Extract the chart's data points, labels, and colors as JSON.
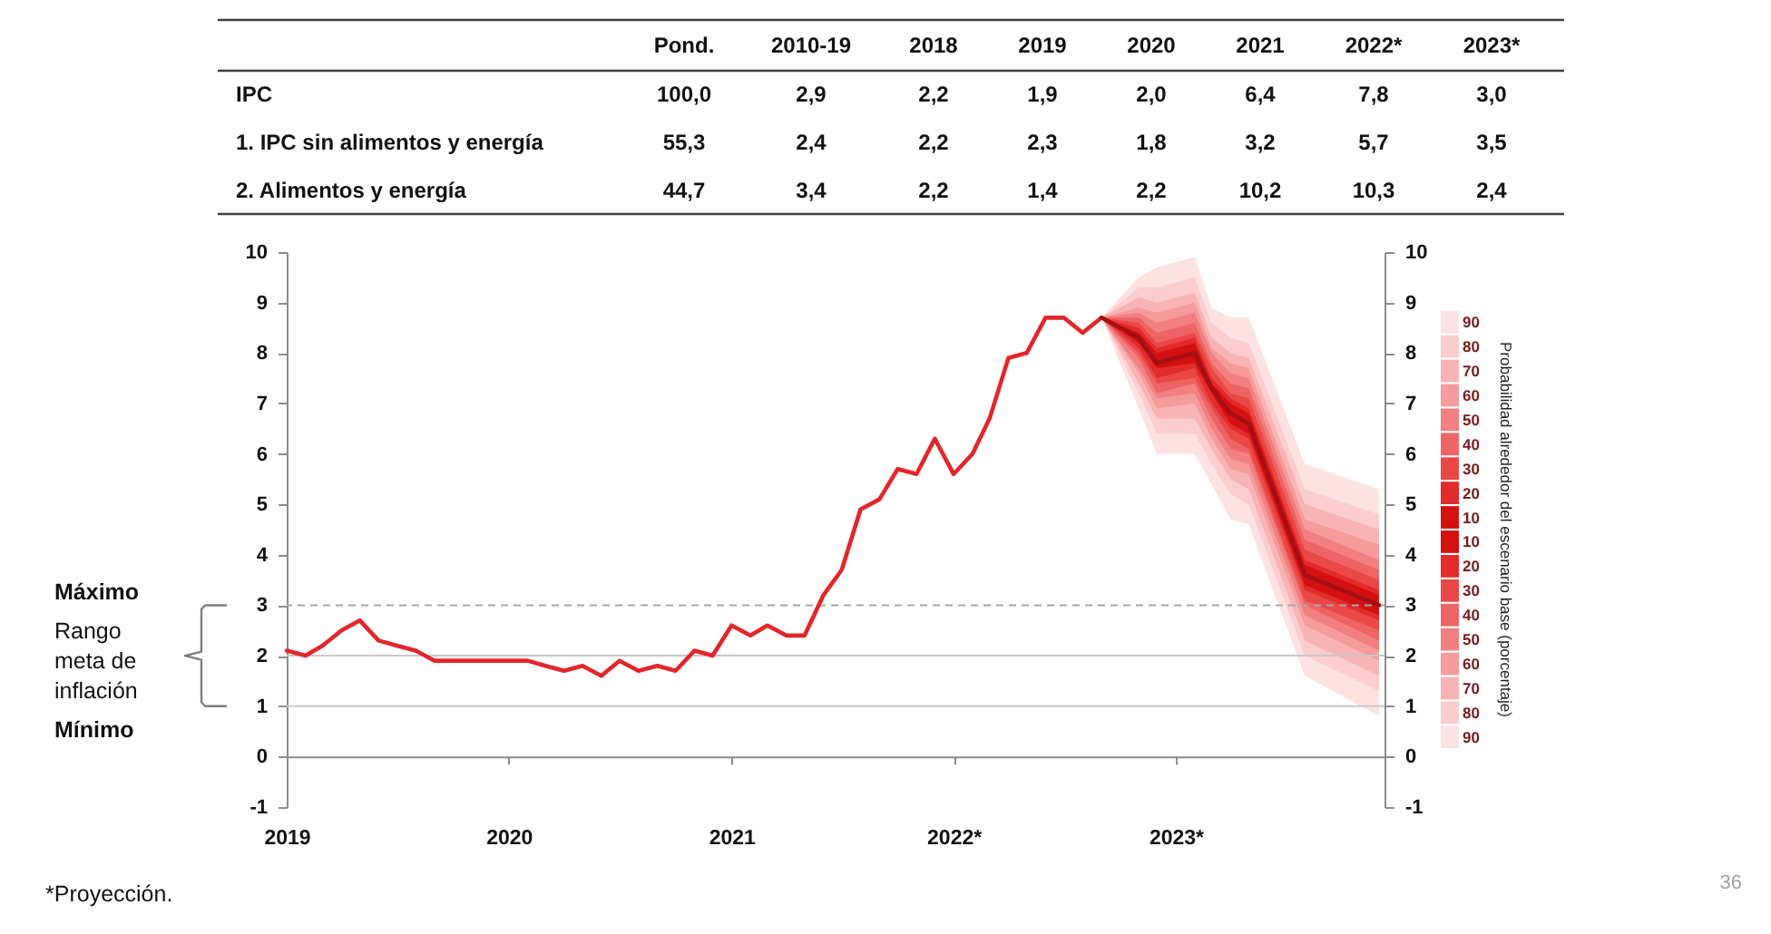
{
  "chart_data": [
    {
      "type": "heatmap",
      "categories": [
        "Pond.",
        "2010-19",
        "2018",
        "2019",
        "2020",
        "2021",
        "2022*",
        "2023*"
      ],
      "y_categories": [
        "IPC",
        "1. IPC sin alimentos y energía",
        "2. Alimentos y energía"
      ],
      "cells": [
        [
          100.0,
          2.9,
          2.2,
          1.9,
          2.0,
          6.4,
          7.8,
          3.0
        ],
        [
          55.3,
          2.4,
          2.2,
          2.3,
          1.8,
          3.2,
          5.7,
          3.5
        ],
        [
          44.7,
          3.4,
          2.2,
          1.4,
          2.2,
          10.2,
          10.3,
          2.4
        ]
      ],
      "cell_labels": [
        [
          "100,0",
          "2,9",
          "2,2",
          "1,9",
          "2,0",
          "6,4",
          "7,8",
          "3,0"
        ],
        [
          "55,3",
          "2,4",
          "2,2",
          "2,3",
          "1,8",
          "3,2",
          "5,7",
          "3,5"
        ],
        [
          "44,7",
          "3,4",
          "2,2",
          "1,4",
          "2,2",
          "10,2",
          "10,3",
          "2,4"
        ]
      ]
    },
    {
      "type": "line",
      "xlim": [
        "2019-01",
        "2023-12-10"
      ],
      "xticks": [
        "2019",
        "2020",
        "2021",
        {
          "value": "2022",
          "label": "2022*"
        },
        {
          "value": "2023",
          "label": "2023*"
        }
      ],
      "ylim": [
        -1,
        10
      ],
      "yticks": [
        -1,
        0,
        1,
        2,
        3,
        4,
        5,
        6,
        7,
        8,
        9,
        10
      ],
      "y2lim": [
        -1,
        10
      ],
      "y2ticks": [
        -1,
        0,
        1,
        2,
        3,
        4,
        5,
        6,
        7,
        8,
        9,
        10
      ],
      "legend": "right",
      "legend_title": "Probabilidad alrededor del escenario base (porcentaje)",
      "ref_lines": [
        {
          "axis": "y",
          "value": 3,
          "color": "#a6a6a6",
          "line_style": "dashed"
        },
        {
          "axis": "y",
          "value": 2,
          "color": "#c8c8c8"
        },
        {
          "axis": "y",
          "value": 1,
          "color": "#c8c8c8"
        }
      ],
      "annotations": [
        "Máximo",
        "Rango meta de inflación",
        "Mínimo",
        "*Proyección.",
        "36"
      ],
      "series": [
        {
          "type": "area",
          "name": "90",
          "color": "#fde2e2",
          "x": [
            "2022-09",
            "2022-11",
            "2022-12",
            "2023-02",
            "2023-03",
            "2023-04",
            "2023-05",
            "2023-08",
            "2023-12"
          ],
          "values": [
            null,
            null,
            null,
            null,
            null,
            null,
            null,
            null,
            null
          ],
          "upper": [
            8.7,
            9.5,
            9.7,
            9.9,
            8.9,
            8.7,
            8.7,
            5.8,
            5.3
          ],
          "lower": [
            8.7,
            6.9,
            6.0,
            6.0,
            5.4,
            4.7,
            4.6,
            1.6,
            0.8
          ]
        },
        {
          "type": "area",
          "name": "80",
          "color": "#fbcdcd",
          "x": [
            "2022-09",
            "2022-11",
            "2022-12",
            "2023-02",
            "2023-03",
            "2023-04",
            "2023-05",
            "2023-08",
            "2023-12"
          ],
          "values": [
            null,
            null,
            null,
            null,
            null,
            null,
            null,
            null,
            null
          ],
          "upper": [
            8.7,
            9.3,
            9.3,
            9.5,
            8.6,
            8.3,
            8.2,
            5.3,
            4.8
          ],
          "lower": [
            8.7,
            7.2,
            6.4,
            6.4,
            5.8,
            5.2,
            5.0,
            2.0,
            1.3
          ]
        },
        {
          "type": "area",
          "name": "70",
          "color": "#f8b4b4",
          "x": [
            "2022-09",
            "2022-11",
            "2022-12",
            "2023-02",
            "2023-03",
            "2023-04",
            "2023-05",
            "2023-08",
            "2023-12"
          ],
          "values": [
            null,
            null,
            null,
            null,
            null,
            null,
            null,
            null,
            null
          ],
          "upper": [
            8.7,
            9.1,
            9.0,
            9.2,
            8.3,
            8.0,
            7.9,
            5.0,
            4.5
          ],
          "lower": [
            8.7,
            7.4,
            6.7,
            6.7,
            6.1,
            5.5,
            5.3,
            2.3,
            1.6
          ]
        },
        {
          "type": "area",
          "name": "60",
          "color": "#f59b9b",
          "x": [
            "2022-09",
            "2022-11",
            "2022-12",
            "2023-02",
            "2023-03",
            "2023-04",
            "2023-05",
            "2023-08",
            "2023-12"
          ],
          "values": [
            null,
            null,
            null,
            null,
            null,
            null,
            null,
            null,
            null
          ],
          "upper": [
            8.7,
            8.9,
            8.8,
            9.0,
            8.1,
            7.8,
            7.7,
            4.7,
            4.2
          ],
          "lower": [
            8.7,
            7.6,
            6.9,
            7.0,
            6.3,
            5.7,
            5.6,
            2.6,
            1.9
          ]
        },
        {
          "type": "area",
          "name": "50",
          "color": "#f28080",
          "x": [
            "2022-09",
            "2022-11",
            "2022-12",
            "2023-02",
            "2023-03",
            "2023-04",
            "2023-05",
            "2023-08",
            "2023-12"
          ],
          "values": [
            null,
            null,
            null,
            null,
            null,
            null,
            null,
            null,
            null
          ],
          "upper": [
            8.7,
            8.8,
            8.6,
            8.8,
            8.0,
            7.6,
            7.5,
            4.5,
            3.9
          ],
          "lower": [
            8.7,
            7.7,
            7.1,
            7.2,
            6.5,
            5.9,
            5.8,
            2.8,
            2.1
          ]
        },
        {
          "type": "area",
          "name": "40",
          "color": "#ee6464",
          "x": [
            "2022-09",
            "2022-11",
            "2022-12",
            "2023-02",
            "2023-03",
            "2023-04",
            "2023-05",
            "2023-08",
            "2023-12"
          ],
          "values": [
            null,
            null,
            null,
            null,
            null,
            null,
            null,
            null,
            null
          ],
          "upper": [
            8.7,
            8.7,
            8.4,
            8.6,
            7.8,
            7.4,
            7.3,
            4.3,
            3.7
          ],
          "lower": [
            8.7,
            7.9,
            7.2,
            7.4,
            6.7,
            6.1,
            6.0,
            3.0,
            2.3
          ]
        },
        {
          "type": "area",
          "name": "30",
          "color": "#ea4747",
          "x": [
            "2022-09",
            "2022-11",
            "2022-12",
            "2023-02",
            "2023-03",
            "2023-04",
            "2023-05",
            "2023-08",
            "2023-12"
          ],
          "values": [
            null,
            null,
            null,
            null,
            null,
            null,
            null,
            null,
            null
          ],
          "upper": [
            8.7,
            8.6,
            8.2,
            8.4,
            7.7,
            7.2,
            7.1,
            4.1,
            3.5
          ],
          "lower": [
            8.7,
            8.0,
            7.4,
            7.5,
            6.9,
            6.3,
            6.1,
            3.1,
            2.5
          ]
        },
        {
          "type": "area",
          "name": "20",
          "color": "#e32b2b",
          "x": [
            "2022-09",
            "2022-11",
            "2022-12",
            "2023-02",
            "2023-03",
            "2023-04",
            "2023-05",
            "2023-08",
            "2023-12"
          ],
          "values": [
            null,
            null,
            null,
            null,
            null,
            null,
            null,
            null,
            null
          ],
          "upper": [
            8.7,
            8.5,
            8.1,
            8.3,
            7.5,
            7.1,
            6.9,
            3.9,
            3.3
          ],
          "lower": [
            8.7,
            8.1,
            7.5,
            7.7,
            7.0,
            6.5,
            6.3,
            3.3,
            2.7
          ]
        },
        {
          "type": "area",
          "name": "10",
          "color": "#d41010",
          "x": [
            "2022-09",
            "2022-11",
            "2022-12",
            "2023-02",
            "2023-03",
            "2023-04",
            "2023-05",
            "2023-08",
            "2023-12"
          ],
          "values": [
            null,
            null,
            null,
            null,
            null,
            null,
            null,
            null,
            null
          ],
          "upper": [
            8.7,
            8.4,
            8.0,
            8.2,
            7.4,
            7.0,
            6.8,
            3.8,
            3.2
          ],
          "lower": [
            8.7,
            8.2,
            7.7,
            7.8,
            7.2,
            6.6,
            6.4,
            3.4,
            2.8
          ]
        },
        {
          "type": "line",
          "color": "#e3262b",
          "x": [
            "2019-01",
            "2019-02",
            "2019-03",
            "2019-04",
            "2019-05",
            "2019-06",
            "2019-07",
            "2019-08",
            "2019-09",
            "2019-10",
            "2019-11",
            "2019-12",
            "2020-01",
            "2020-02",
            "2020-03",
            "2020-04",
            "2020-05",
            "2020-06",
            "2020-07",
            "2020-08",
            "2020-09",
            "2020-10",
            "2020-11",
            "2020-12",
            "2021-01",
            "2021-02",
            "2021-03",
            "2021-04",
            "2021-05",
            "2021-06",
            "2021-07",
            "2021-08",
            "2021-09",
            "2021-10",
            "2021-11",
            "2021-12",
            "2022-01",
            "2022-02",
            "2022-03",
            "2022-04",
            "2022-05",
            "2022-06",
            "2022-07",
            "2022-08",
            "2022-09"
          ],
          "values": [
            2.1,
            2.0,
            2.2,
            2.5,
            2.7,
            2.3,
            2.2,
            2.1,
            1.9,
            1.9,
            1.9,
            1.9,
            1.9,
            1.9,
            1.8,
            1.7,
            1.8,
            1.6,
            1.9,
            1.7,
            1.8,
            1.7,
            2.1,
            2.0,
            2.6,
            2.4,
            2.6,
            2.4,
            2.4,
            3.2,
            3.7,
            4.9,
            5.1,
            5.7,
            5.6,
            6.3,
            5.6,
            6.0,
            6.7,
            7.9,
            8.0,
            8.7,
            8.7,
            8.4,
            8.7
          ]
        },
        {
          "type": "line",
          "color": "#a50f15",
          "x": [
            "2022-09",
            "2022-11",
            "2022-12",
            "2023-02",
            "2023-03",
            "2023-04",
            "2023-05",
            "2023-08",
            "2023-12"
          ],
          "values": [
            8.7,
            8.3,
            7.8,
            8.0,
            7.3,
            6.8,
            6.6,
            3.6,
            3.0
          ]
        }
      ]
    }
  ]
}
